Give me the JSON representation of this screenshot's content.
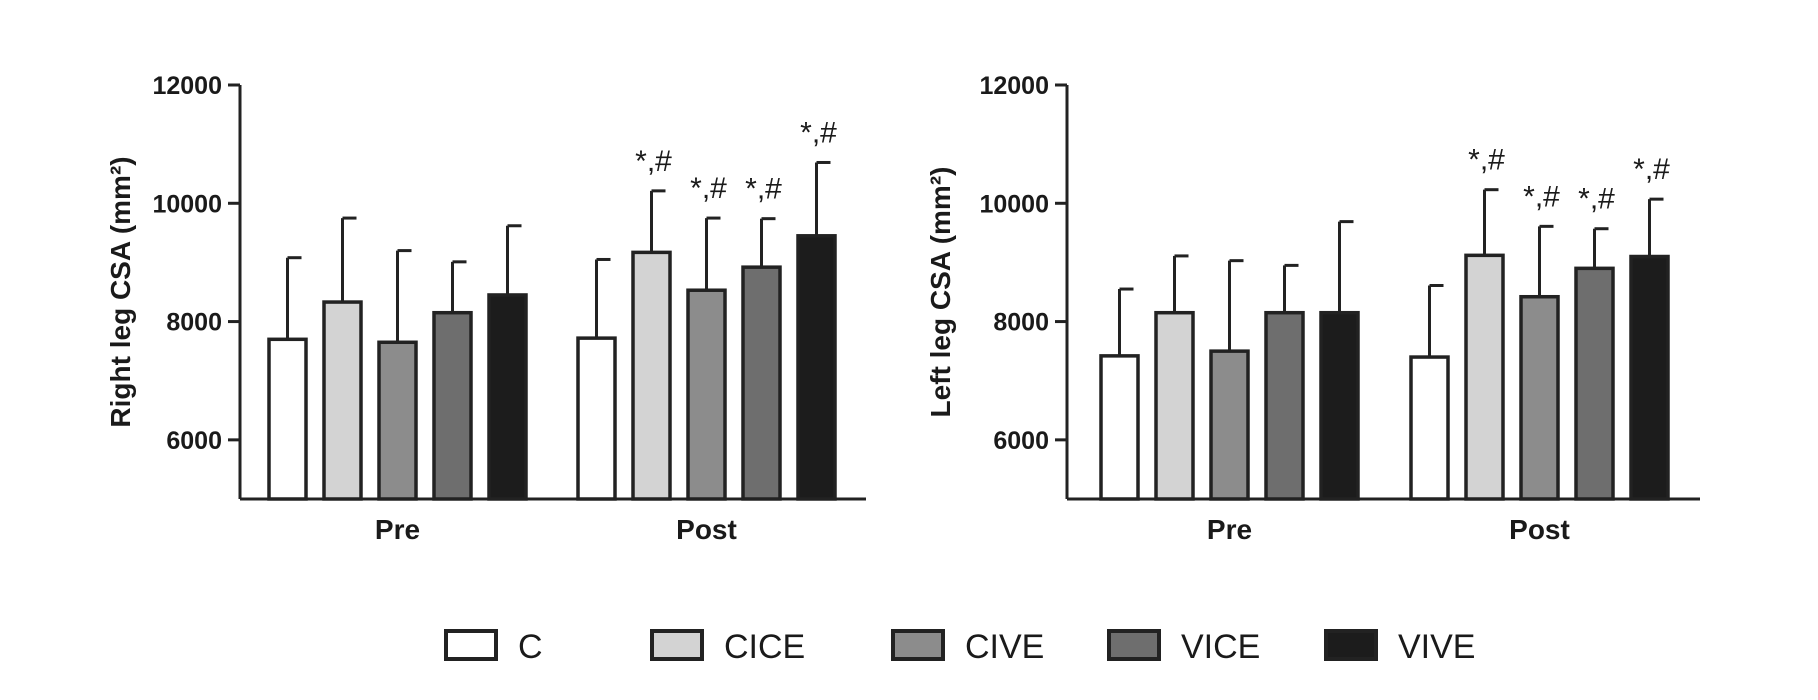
{
  "chart_data": [
    {
      "type": "bar",
      "ylabel": "Right leg CSA (mm²)",
      "ylim": [
        5000,
        12000
      ],
      "yticks": [
        6000,
        8000,
        10000,
        12000
      ],
      "categories": [
        "Pre",
        "Post"
      ],
      "series": [
        {
          "name": "C",
          "values": [
            7700,
            7720
          ],
          "errors": [
            1380,
            1330
          ]
        },
        {
          "name": "CICE",
          "values": [
            8330,
            9170
          ],
          "errors": [
            1420,
            1040
          ]
        },
        {
          "name": "CIVE",
          "values": [
            7650,
            8530
          ],
          "errors": [
            1550,
            1220
          ]
        },
        {
          "name": "VICE",
          "values": [
            8150,
            8920
          ],
          "errors": [
            860,
            820
          ]
        },
        {
          "name": "VIVE",
          "values": [
            8450,
            9450
          ],
          "errors": [
            1170,
            1240
          ]
        }
      ],
      "annotations": [
        {
          "category": "Post",
          "series": "CICE",
          "text": "*,#"
        },
        {
          "category": "Post",
          "series": "CIVE",
          "text": "*,#"
        },
        {
          "category": "Post",
          "series": "VICE",
          "text": "*,#"
        },
        {
          "category": "Post",
          "series": "VIVE",
          "text": "*,#"
        }
      ]
    },
    {
      "type": "bar",
      "ylabel": "Left leg CSA (mm²)",
      "ylim": [
        5000,
        12000
      ],
      "yticks": [
        6000,
        8000,
        10000,
        12000
      ],
      "categories": [
        "Pre",
        "Post"
      ],
      "series": [
        {
          "name": "C",
          "values": [
            7420,
            7400
          ],
          "errors": [
            1130,
            1210
          ]
        },
        {
          "name": "CICE",
          "values": [
            8150,
            9120
          ],
          "errors": [
            960,
            1110
          ]
        },
        {
          "name": "CIVE",
          "values": [
            7500,
            8420
          ],
          "errors": [
            1530,
            1190
          ]
        },
        {
          "name": "VICE",
          "values": [
            8150,
            8900
          ],
          "errors": [
            800,
            670
          ]
        },
        {
          "name": "VIVE",
          "values": [
            8150,
            9100
          ],
          "errors": [
            1540,
            970
          ]
        }
      ],
      "annotations": [
        {
          "category": "Post",
          "series": "CICE",
          "text": "*,#"
        },
        {
          "category": "Post",
          "series": "CIVE",
          "text": "*,#"
        },
        {
          "category": "Post",
          "series": "VICE",
          "text": "*,#"
        },
        {
          "category": "Post",
          "series": "VIVE",
          "text": "*,#"
        }
      ]
    }
  ],
  "colors": {
    "C": "#ffffff",
    "CICE": "#d3d3d3",
    "CIVE": "#8c8c8c",
    "VICE": "#6e6e6e",
    "VIVE": "#1c1c1c",
    "stroke": "#222222"
  },
  "legend": {
    "placement": "bottom",
    "items": [
      "C",
      "CICE",
      "CIVE",
      "VICE",
      "VIVE"
    ]
  }
}
